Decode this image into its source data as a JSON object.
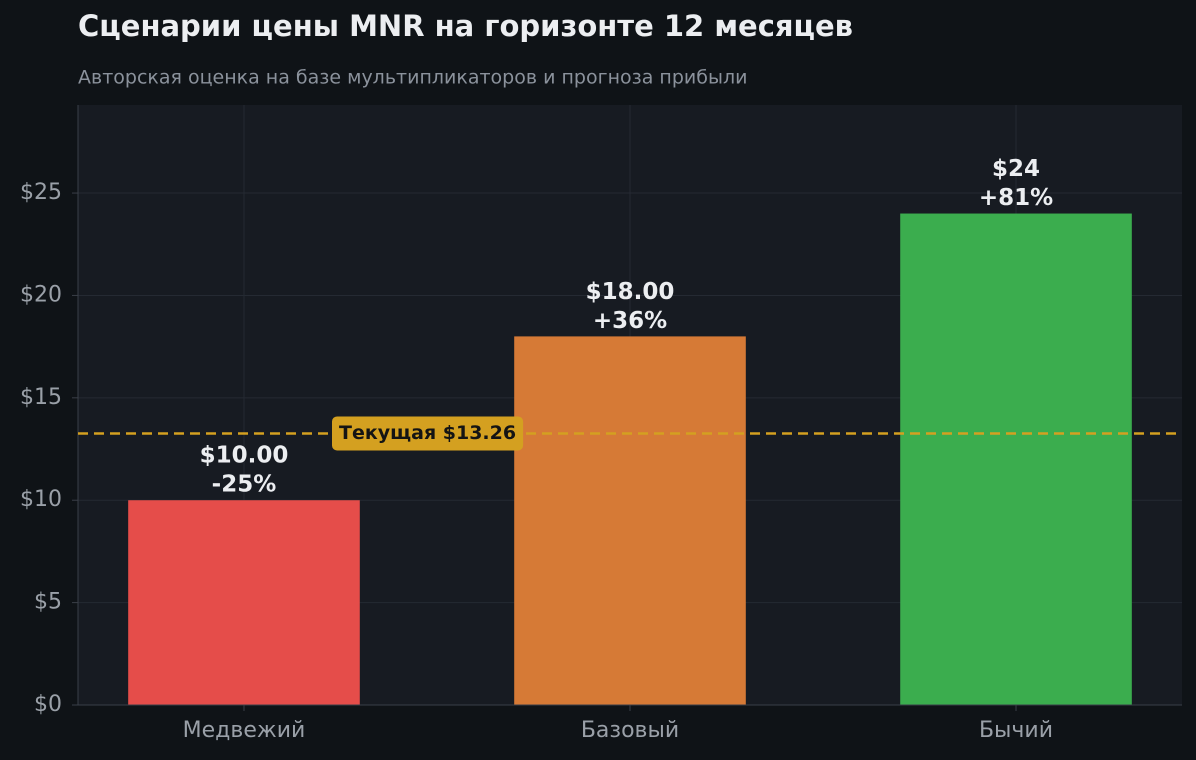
{
  "chart_data": {
    "type": "bar",
    "title": "Сценарии цены MNR на горизонте 12 месяцев",
    "subtitle": "Авторская оценка на базе мультипликаторов и прогноза прибыли",
    "categories": [
      "Медвежий",
      "Базовый",
      "Бычий"
    ],
    "values": [
      10,
      18,
      24
    ],
    "value_labels": [
      "$10.00",
      "$18.00",
      "$24"
    ],
    "change_labels": [
      "-25%",
      "+36%",
      "+81%"
    ],
    "colors": [
      "#e54d4a",
      "#d67a36",
      "#3bad4e"
    ],
    "ylim": [
      0,
      29.3
    ],
    "yticks": [
      {
        "value": 0,
        "label": "$0"
      },
      {
        "value": 5,
        "label": "$5"
      },
      {
        "value": 10,
        "label": "$10"
      },
      {
        "value": 15,
        "label": "$15"
      },
      {
        "value": 20,
        "label": "$20"
      },
      {
        "value": 25,
        "label": "$25"
      }
    ],
    "grid": true,
    "reference": {
      "value": 13.26,
      "label": "Текущая $13.26",
      "color": "#d4a020"
    }
  }
}
